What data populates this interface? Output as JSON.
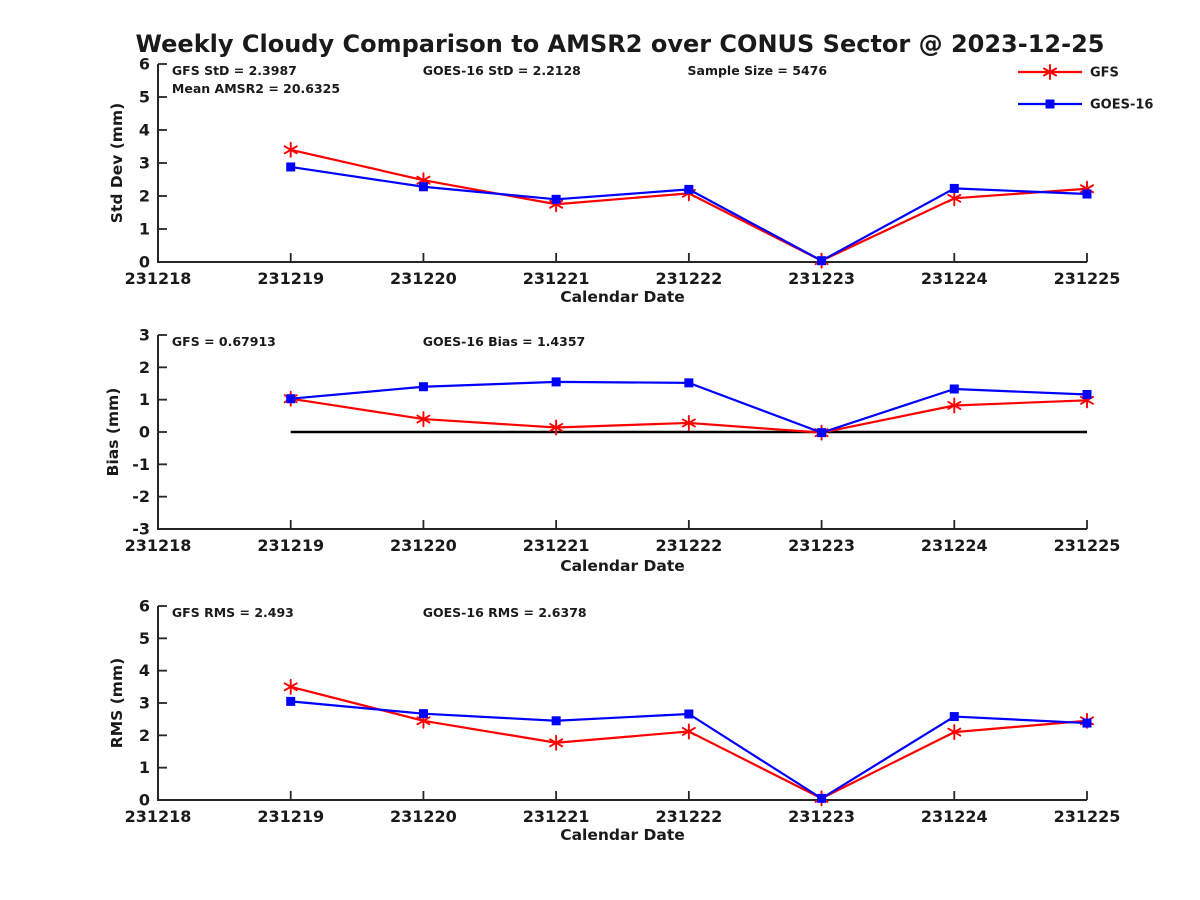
{
  "title": "Weekly Cloudy Comparison to AMSR2 over CONUS Sector @ 2023-12-25",
  "colors": {
    "gfs": "#ff0000",
    "goes16": "#0000ff",
    "axis": "#262626",
    "text": "#1a1a1a",
    "zero_line": "#000000"
  },
  "legend": [
    {
      "label": "GFS",
      "color_key": "gfs",
      "marker": "asterisk"
    },
    {
      "label": "GOES-16",
      "color_key": "goes16",
      "marker": "square"
    }
  ],
  "chart_data": [
    {
      "type": "line",
      "slug": "std-dev",
      "title": "",
      "xlabel": "Calendar Date",
      "ylabel": "Std Dev (mm)",
      "ylim": [
        0,
        6
      ],
      "yticks": [
        0,
        1,
        2,
        3,
        4,
        5,
        6
      ],
      "x": [
        "231218",
        "231219",
        "231220",
        "231221",
        "231222",
        "231223",
        "231224",
        "231225"
      ],
      "annotations": [
        "GFS StD = 2.3987",
        "GOES-16 StD = 2.2128",
        "Sample Size = 5476",
        "Mean AMSR2 = 20.6325"
      ],
      "zero_line": false,
      "series": [
        {
          "name": "GFS",
          "color_key": "gfs",
          "marker": "asterisk",
          "values": [
            null,
            3.4,
            2.48,
            1.75,
            2.08,
            0.04,
            1.93,
            2.22
          ]
        },
        {
          "name": "GOES-16",
          "color_key": "goes16",
          "marker": "square",
          "values": [
            null,
            2.88,
            2.28,
            1.9,
            2.2,
            0.04,
            2.23,
            2.06
          ]
        }
      ]
    },
    {
      "type": "line",
      "slug": "bias",
      "title": "",
      "xlabel": "Calendar Date",
      "ylabel": "Bias (mm)",
      "ylim": [
        -3,
        3
      ],
      "yticks": [
        -3,
        -2,
        -1,
        0,
        1,
        2,
        3
      ],
      "x": [
        "231218",
        "231219",
        "231220",
        "231221",
        "231222",
        "231223",
        "231224",
        "231225"
      ],
      "annotations": [
        "GFS = 0.67913",
        "GOES-16 Bias  = 1.4357"
      ],
      "zero_line": true,
      "series": [
        {
          "name": "GFS",
          "color_key": "gfs",
          "marker": "asterisk",
          "values": [
            null,
            1.03,
            0.4,
            0.14,
            0.28,
            -0.02,
            0.82,
            0.98
          ]
        },
        {
          "name": "GOES-16",
          "color_key": "goes16",
          "marker": "square",
          "values": [
            null,
            1.03,
            1.4,
            1.55,
            1.52,
            -0.02,
            1.33,
            1.16
          ]
        }
      ]
    },
    {
      "type": "line",
      "slug": "rms",
      "title": "",
      "xlabel": "Calendar Date",
      "ylabel": "RMS (mm)",
      "ylim": [
        0,
        6
      ],
      "yticks": [
        0,
        1,
        2,
        3,
        4,
        5,
        6
      ],
      "x": [
        "231218",
        "231219",
        "231220",
        "231221",
        "231222",
        "231223",
        "231224",
        "231225"
      ],
      "annotations": [
        "GFS RMS = 2.493",
        "GOES-16 RMS = 2.6378"
      ],
      "zero_line": false,
      "series": [
        {
          "name": "GFS",
          "color_key": "gfs",
          "marker": "asterisk",
          "values": [
            null,
            3.5,
            2.45,
            1.77,
            2.12,
            0.05,
            2.1,
            2.45
          ]
        },
        {
          "name": "GOES-16",
          "color_key": "goes16",
          "marker": "square",
          "values": [
            null,
            3.05,
            2.67,
            2.45,
            2.66,
            0.05,
            2.58,
            2.38
          ]
        }
      ]
    }
  ]
}
